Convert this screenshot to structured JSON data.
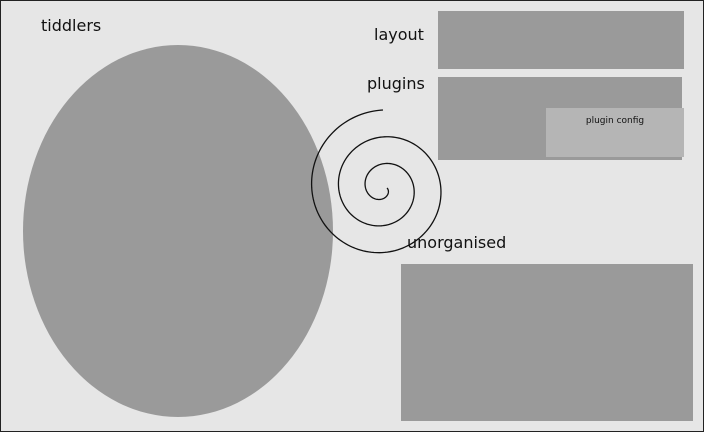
{
  "labels": {
    "tiddlers": "tiddlers",
    "layout": "layout",
    "plugins": "plugins",
    "plugin_config": "plugin config",
    "unorganised": "unorganised"
  },
  "colors": {
    "background": "#e6e6e6",
    "region_fill": "#9a9a9a",
    "nested_fill": "#b5b5b5",
    "stroke": "#111111"
  },
  "icons": {
    "spiral": "spiral-icon"
  }
}
